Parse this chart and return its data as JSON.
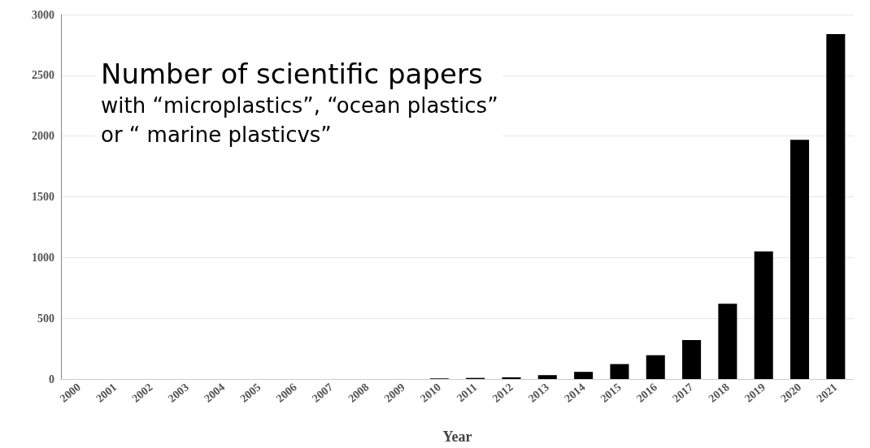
{
  "chart_data": {
    "type": "bar",
    "title": "Number of scientific papers",
    "subtitle": "with “microplastics”, “ocean plastics”\nor “ marine plasticvs”",
    "xlabel": "Year",
    "categories": [
      "2000",
      "2001",
      "2002",
      "2003",
      "2004",
      "2005",
      "2006",
      "2007",
      "2008",
      "2009",
      "2010",
      "2011",
      "2012",
      "2013",
      "2014",
      "2015",
      "2016",
      "2017",
      "2018",
      "2019",
      "2020",
      "2021"
    ],
    "values": [
      0,
      0,
      0,
      0,
      0,
      0,
      0,
      0,
      0,
      0,
      5,
      9,
      14,
      32,
      59,
      123,
      196,
      320,
      620,
      1050,
      1970,
      2840
    ],
    "color": "#000000",
    "ylim": [
      0,
      3000
    ],
    "yticks": [
      0,
      500,
      1000,
      1500,
      2000,
      2500,
      3000
    ],
    "grid": "y"
  }
}
